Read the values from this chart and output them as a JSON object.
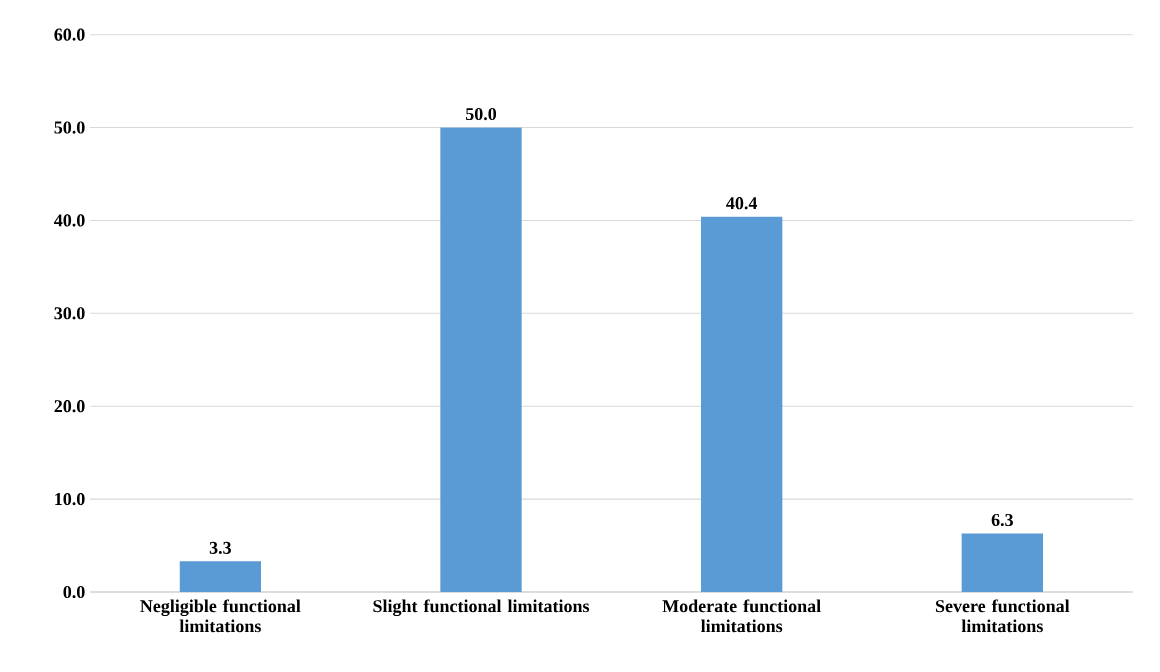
{
  "chart_data": {
    "type": "bar",
    "categories": [
      "Negligible functional limitations",
      "Slight functional limitations",
      "Moderate functional limitations",
      "Severe functional limitations"
    ],
    "values": [
      3.3,
      50.0,
      40.4,
      6.3
    ],
    "value_labels": [
      "3.3",
      "50.0",
      "40.4",
      "6.3"
    ],
    "color": "#5b9bd5",
    "ylim": [
      0,
      60
    ],
    "yticks": [
      {
        "value": 0,
        "label": "0.0"
      },
      {
        "value": 10,
        "label": "10.0"
      },
      {
        "value": 20,
        "label": "20.0"
      },
      {
        "value": 30,
        "label": "30.0"
      },
      {
        "value": 40,
        "label": "40.0"
      },
      {
        "value": 50,
        "label": "50.0"
      },
      {
        "value": 60,
        "label": "60.0"
      }
    ],
    "grid": "y"
  }
}
